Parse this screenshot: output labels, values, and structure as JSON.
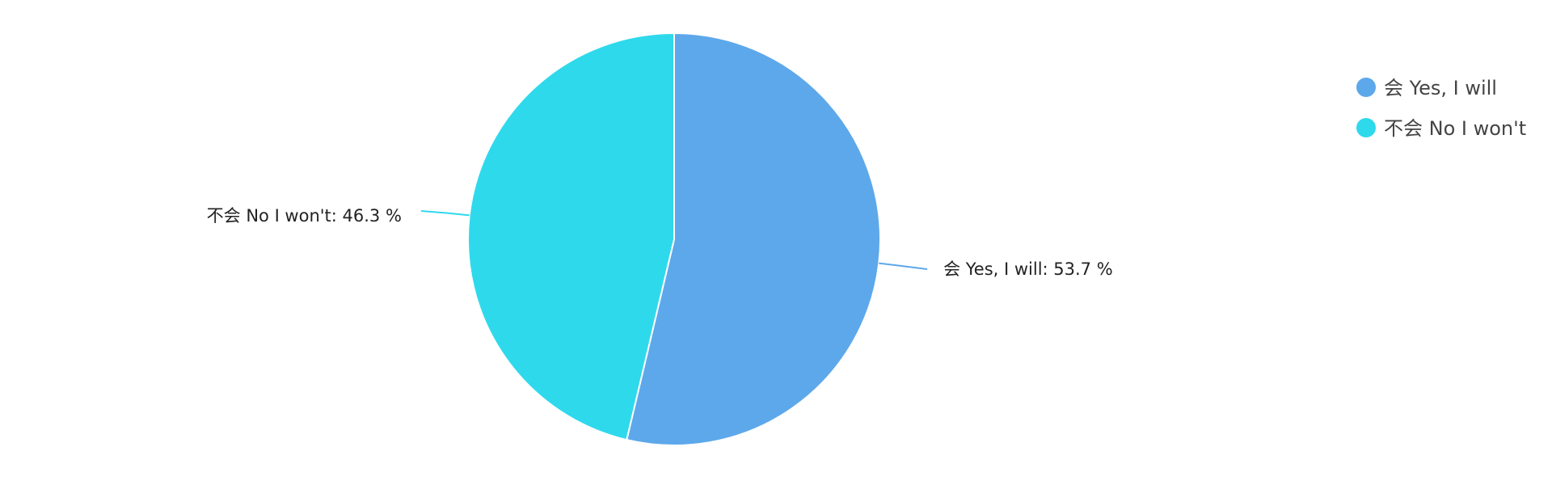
{
  "chart_data": {
    "type": "pie",
    "title": "",
    "legend": {
      "position": "top-right",
      "items": [
        {
          "label": "会 Yes, I will",
          "color": "#5da8ea"
        },
        {
          "label": "不会 No I won't",
          "color": "#2fd9ec"
        }
      ]
    },
    "slices": [
      {
        "name": "会 Yes, I will",
        "value": 53.7,
        "color": "#5da8ea",
        "label": "会 Yes, I will: 53.7 %"
      },
      {
        "name": "不会 No I won't",
        "value": 46.3,
        "color": "#2fd9ec",
        "label": "不会 No I won't: 46.3 %"
      }
    ],
    "unit": "%"
  }
}
